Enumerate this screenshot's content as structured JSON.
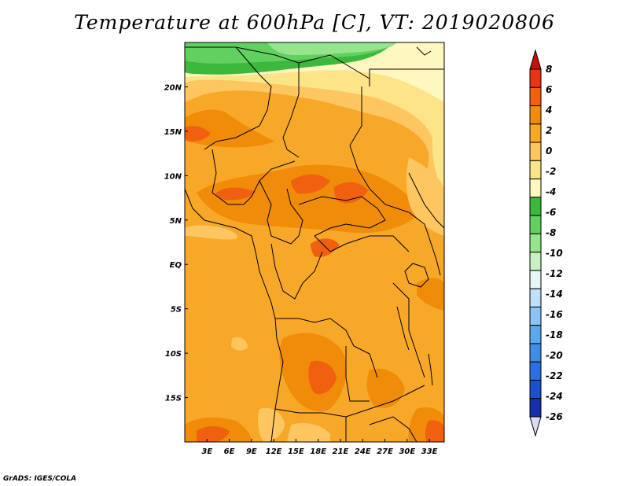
{
  "title": "Temperature at 600hPa [C], VT: 2019020806",
  "credit": "GrADS: IGES/COLA",
  "map": {
    "lon_range": [
      0,
      35
    ],
    "lat_range": [
      -20,
      25
    ],
    "x_ticks": [
      {
        "lon": 3,
        "label": "3E"
      },
      {
        "lon": 6,
        "label": "6E"
      },
      {
        "lon": 9,
        "label": "9E"
      },
      {
        "lon": 12,
        "label": "12E"
      },
      {
        "lon": 15,
        "label": "15E"
      },
      {
        "lon": 18,
        "label": "18E"
      },
      {
        "lon": 21,
        "label": "21E"
      },
      {
        "lon": 24,
        "label": "24E"
      },
      {
        "lon": 27,
        "label": "27E"
      },
      {
        "lon": 30,
        "label": "30E"
      },
      {
        "lon": 33,
        "label": "33E"
      }
    ],
    "y_ticks": [
      {
        "lat": 20,
        "label": "20N"
      },
      {
        "lat": 15,
        "label": "15N"
      },
      {
        "lat": 10,
        "label": "10N"
      },
      {
        "lat": 5,
        "label": "5N"
      },
      {
        "lat": 0,
        "label": "EQ"
      },
      {
        "lat": -5,
        "label": "5S"
      },
      {
        "lat": -10,
        "label": "10S"
      },
      {
        "lat": -15,
        "label": "15S"
      }
    ]
  },
  "colorbar": {
    "colors": [
      "#0b0b6e",
      "#1530a8",
      "#1a50c8",
      "#2a70e0",
      "#3e8ee8",
      "#5aa8f0",
      "#8cc4f4",
      "#c0e0fa",
      "#e6f6f4",
      "#c8f0c0",
      "#96e48c",
      "#62d060",
      "#3cb83c",
      "#fff6c0",
      "#fde488",
      "#fdc660",
      "#f8a828",
      "#f08c08",
      "#f06010",
      "#e83410",
      "#c81008"
    ],
    "labels": [
      "-26",
      "-24",
      "-22",
      "-20",
      "-18",
      "-16",
      "-14",
      "-12",
      "-10",
      "-8",
      "-6",
      "-4",
      "-2",
      "0",
      "2",
      "4",
      "6",
      "8"
    ]
  }
}
